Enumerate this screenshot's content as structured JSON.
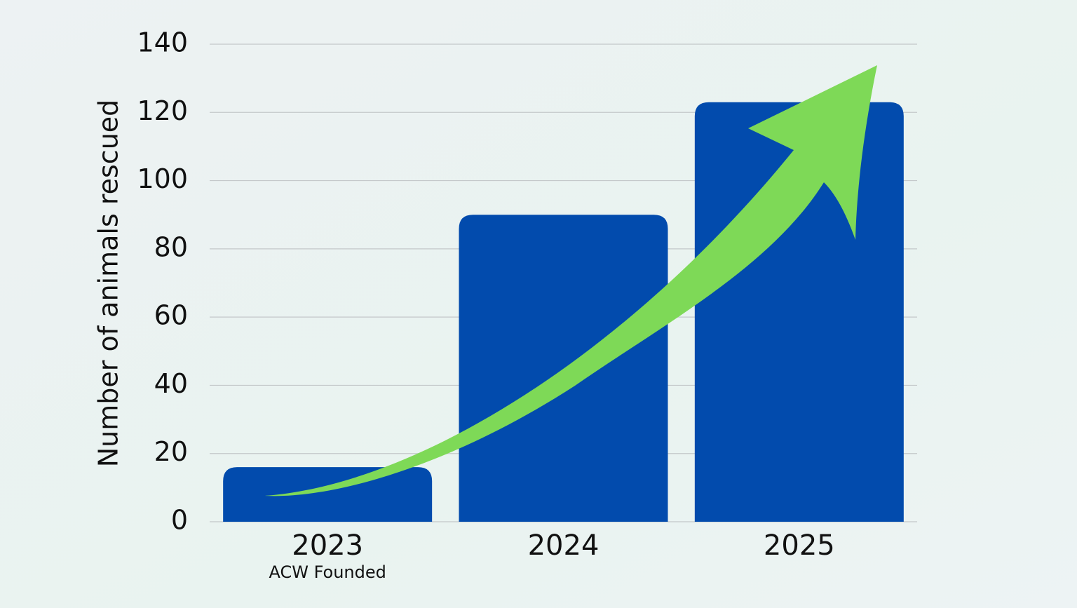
{
  "chart_data": {
    "type": "bar",
    "y_label": "Number of animals rescued",
    "categories": [
      "2023",
      "2024",
      "2025"
    ],
    "values": [
      16,
      90,
      123
    ],
    "color": "#024bad",
    "annotation": "ACW Founded",
    "ylim": [
      0,
      140
    ],
    "yticks": [
      0,
      20,
      40,
      60,
      80,
      100,
      120,
      140
    ],
    "grid": true
  }
}
